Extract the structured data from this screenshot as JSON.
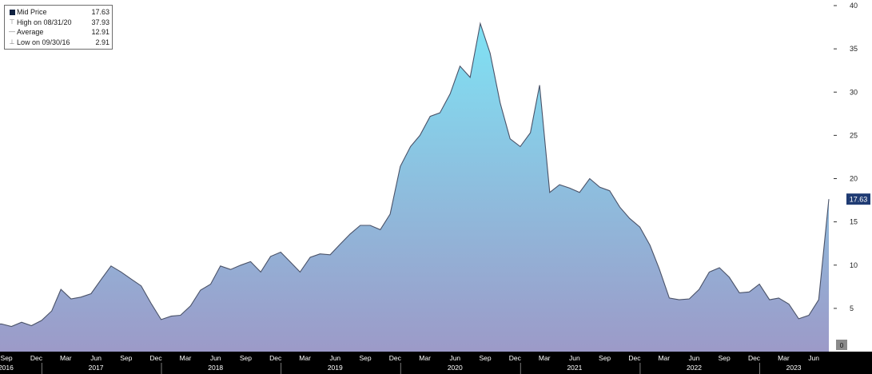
{
  "legend": {
    "rows": [
      {
        "icon": "square-marker-icon",
        "label": "Mid Price",
        "value": "17.63"
      },
      {
        "icon": "high-marker-icon",
        "label": "High on 08/31/20",
        "value": "37.93"
      },
      {
        "icon": "average-marker-icon",
        "label": "Average",
        "value": "12.91"
      },
      {
        "icon": "low-marker-icon",
        "label": "Low on 09/30/16",
        "value": "2.91"
      }
    ]
  },
  "chart_data": {
    "type": "area",
    "title": "",
    "xlabel": "",
    "ylabel": "",
    "ylim": [
      0,
      40
    ],
    "y_ticks": [
      "5",
      "10",
      "15",
      "20",
      "25",
      "30",
      "35",
      "40"
    ],
    "y_zero_label": "0",
    "last_value_label": "17.63",
    "grid": false,
    "legend_position": "top-left",
    "y_axis_position": "right",
    "colors": {
      "background": "#ffffff",
      "line": "#4a5268",
      "fill_top": "#7fe2f4",
      "fill_bottom": "#9c9ac8",
      "axis_bar": "#000000",
      "axis_text": "#ffffff",
      "last_value_badge": "#1f3b73"
    },
    "x_months": [
      "Sep",
      "Dec",
      "Mar",
      "Jun",
      "Sep",
      "Dec",
      "Mar",
      "Jun",
      "Sep",
      "Dec",
      "Mar",
      "Jun",
      "Sep",
      "Dec",
      "Mar",
      "Jun",
      "Sep",
      "Dec",
      "Mar",
      "Jun",
      "Sep",
      "Dec",
      "Mar",
      "Jun",
      "Sep",
      "Dec",
      "Mar",
      "Jun"
    ],
    "x_years": [
      "2016",
      "2017",
      "2018",
      "2019",
      "2020",
      "2021",
      "2022",
      "2023"
    ],
    "series": [
      {
        "x": [
          "2016-08-31",
          "2016-09-30",
          "2016-10-31",
          "2016-11-30",
          "2016-12-31",
          "2017-01-31",
          "2017-02-28",
          "2017-03-31",
          "2017-04-30",
          "2017-05-31",
          "2017-06-30",
          "2017-07-31",
          "2017-08-31",
          "2017-09-30",
          "2017-10-31",
          "2017-11-30",
          "2017-12-31",
          "2018-01-31",
          "2018-02-28",
          "2018-03-31",
          "2018-04-30",
          "2018-05-31",
          "2018-06-30",
          "2018-07-31",
          "2018-08-31",
          "2018-09-30",
          "2018-10-31",
          "2018-11-30",
          "2018-12-31",
          "2019-01-31",
          "2019-02-28",
          "2019-03-31",
          "2019-04-30",
          "2019-05-31",
          "2019-06-30",
          "2019-07-31",
          "2019-08-31",
          "2019-09-30",
          "2019-10-31",
          "2019-11-30",
          "2019-12-31",
          "2020-01-31",
          "2020-02-29",
          "2020-03-31",
          "2020-04-30",
          "2020-05-31",
          "2020-06-30",
          "2020-07-31",
          "2020-08-31",
          "2020-09-30",
          "2020-10-31",
          "2020-11-30",
          "2020-12-31",
          "2021-01-31",
          "2021-02-28",
          "2021-03-31",
          "2021-04-30",
          "2021-05-31",
          "2021-06-30",
          "2021-07-31",
          "2021-08-31",
          "2021-09-30",
          "2021-10-31",
          "2021-11-30",
          "2021-12-31",
          "2022-01-31",
          "2022-02-28",
          "2022-03-31",
          "2022-04-30",
          "2022-05-31",
          "2022-06-30",
          "2022-07-31",
          "2022-08-31",
          "2022-09-30",
          "2022-10-31",
          "2022-11-30",
          "2022-12-31",
          "2023-01-31",
          "2023-02-28",
          "2023-03-31",
          "2023-04-30",
          "2023-05-31",
          "2023-06-30",
          "2023-07-31"
        ],
        "values": [
          3.2,
          2.91,
          3.4,
          3.0,
          3.6,
          4.7,
          7.2,
          6.1,
          6.3,
          6.7,
          8.3,
          9.9,
          9.2,
          8.4,
          7.6,
          5.6,
          3.7,
          4.1,
          4.2,
          5.3,
          7.1,
          7.8,
          9.9,
          9.5,
          10.0,
          10.4,
          9.2,
          11.0,
          11.5,
          10.3,
          9.2,
          10.9,
          11.3,
          11.2,
          12.4,
          13.6,
          14.6,
          14.6,
          14.1,
          15.9,
          21.4,
          23.7,
          25.0,
          27.2,
          27.6,
          29.8,
          33.0,
          31.7,
          37.93,
          34.5,
          28.7,
          24.6,
          23.7,
          25.3,
          30.8,
          18.4,
          19.3,
          18.9,
          18.4,
          20.0,
          19.0,
          18.6,
          16.7,
          15.4,
          14.4,
          12.3,
          9.6,
          6.2,
          6.0,
          6.1,
          7.2,
          9.2,
          9.7,
          8.6,
          6.8,
          6.9,
          7.8,
          6.0,
          6.2,
          5.5,
          3.8,
          4.2,
          6.0,
          17.63
        ]
      }
    ]
  }
}
